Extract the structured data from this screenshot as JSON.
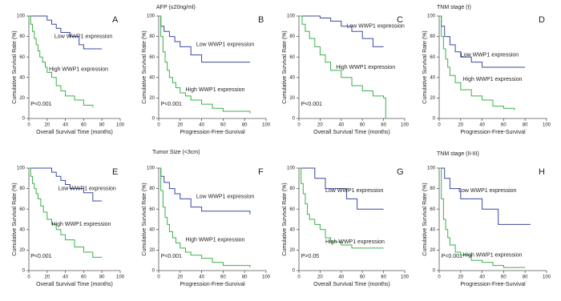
{
  "headings": [
    "AFP (≤20ng/ml)",
    "TNM stage (I)",
    "Tumor Size (<3cm)",
    "TNM stage (II-III)"
  ],
  "chart_data": [
    {
      "type": "line",
      "step": true,
      "title": "A",
      "xlabel": "Overall  Survival  Time (months)",
      "ylabel": "Cumulative Survival Rate (%)",
      "annotation": "P<0.001",
      "xlim": [
        0,
        100
      ],
      "xticks": [
        0,
        20,
        40,
        60,
        80,
        100
      ],
      "ylim": [
        0,
        100
      ],
      "yticks": [
        0,
        20,
        40,
        60,
        80,
        100
      ],
      "series": [
        {
          "name": "Low WWP1 expression",
          "color": "#3b4a9e",
          "x": [
            0,
            10,
            20,
            25,
            30,
            35,
            45,
            55,
            60,
            80
          ],
          "values": [
            100,
            100,
            96,
            92,
            88,
            84,
            80,
            72,
            68,
            68
          ]
        },
        {
          "name": "High WWP1 expression",
          "color": "#3cb04a",
          "x": [
            0,
            2,
            4,
            6,
            8,
            10,
            12,
            15,
            18,
            20,
            25,
            30,
            35,
            40,
            50,
            60,
            70
          ],
          "values": [
            100,
            92,
            85,
            78,
            72,
            66,
            60,
            55,
            50,
            45,
            40,
            32,
            27,
            22,
            18,
            13,
            11
          ]
        }
      ]
    },
    {
      "type": "line",
      "step": true,
      "title": "B",
      "xlabel": "Progression-Free-Survival",
      "ylabel": "Cumulative Survival Rate (%)",
      "annotation": "P<0.001",
      "xlim": [
        0,
        100
      ],
      "xticks": [
        0,
        20,
        40,
        60,
        80,
        100
      ],
      "ylim": [
        0,
        100
      ],
      "yticks": [
        0,
        20,
        40,
        60,
        80,
        100
      ],
      "series": [
        {
          "name": "Low WWP1 expression",
          "color": "#3b4a9e",
          "x": [
            0,
            2,
            5,
            10,
            15,
            20,
            30,
            40,
            85
          ],
          "values": [
            100,
            90,
            85,
            80,
            75,
            70,
            62,
            55,
            55
          ]
        },
        {
          "name": "High WWP1 expression",
          "color": "#3cb04a",
          "x": [
            0,
            2,
            4,
            6,
            8,
            10,
            13,
            16,
            20,
            25,
            30,
            40,
            50,
            60,
            85
          ],
          "values": [
            100,
            80,
            65,
            55,
            47,
            40,
            35,
            30,
            25,
            22,
            18,
            14,
            10,
            7,
            5
          ]
        }
      ]
    },
    {
      "type": "line",
      "step": true,
      "title": "C",
      "xlabel": "Overall  Survival  Time (months)",
      "ylabel": "Cumulative Survival Rate (%)",
      "annotation": "P<0.001",
      "xlim": [
        0,
        100
      ],
      "xticks": [
        0,
        20,
        40,
        60,
        80,
        100
      ],
      "ylim": [
        0,
        100
      ],
      "yticks": [
        0,
        20,
        40,
        60,
        80,
        100
      ],
      "series": [
        {
          "name": "Low WWP1 expression",
          "color": "#3b4a9e",
          "x": [
            0,
            20,
            30,
            40,
            50,
            60,
            70,
            80
          ],
          "values": [
            100,
            98,
            95,
            90,
            85,
            78,
            70,
            70
          ]
        },
        {
          "name": "High WWP1 expression",
          "color": "#3cb04a",
          "x": [
            0,
            3,
            6,
            10,
            15,
            20,
            25,
            30,
            40,
            50,
            60,
            70,
            80,
            82
          ],
          "values": [
            100,
            92,
            85,
            78,
            70,
            62,
            55,
            47,
            40,
            32,
            27,
            22,
            20,
            0
          ]
        }
      ]
    },
    {
      "type": "line",
      "step": true,
      "title": "D",
      "xlabel": "Progression-Free-Survival",
      "ylabel": "Cumulative Survival Rate (%)",
      "xlim": [
        0,
        100
      ],
      "xticks": [
        0,
        20,
        40,
        60,
        80,
        100
      ],
      "ylim": [
        0,
        100
      ],
      "yticks": [
        0,
        20,
        40,
        60,
        80,
        100
      ],
      "series": [
        {
          "name": "Low WWP1 expression",
          "color": "#3b4a9e",
          "x": [
            0,
            2,
            5,
            10,
            15,
            20,
            30,
            40,
            80
          ],
          "values": [
            100,
            90,
            80,
            72,
            65,
            60,
            55,
            50,
            50
          ]
        },
        {
          "name": "High WWP1 expression",
          "color": "#3cb04a",
          "x": [
            0,
            2,
            4,
            6,
            8,
            10,
            15,
            20,
            30,
            40,
            50,
            60,
            70
          ],
          "values": [
            100,
            80,
            68,
            58,
            50,
            42,
            35,
            28,
            22,
            18,
            12,
            10,
            8
          ]
        }
      ]
    },
    {
      "type": "line",
      "step": true,
      "title": "E",
      "xlabel": "Overall  Survival  Time (months)",
      "ylabel": "Cumulative Survival Rate (%)",
      "annotation": "P<0.001",
      "xlim": [
        0,
        100
      ],
      "xticks": [
        0,
        20,
        40,
        60,
        80,
        100
      ],
      "ylim": [
        0,
        100
      ],
      "yticks": [
        0,
        20,
        40,
        60,
        80,
        100
      ],
      "series": [
        {
          "name": "Low WWP1 expression",
          "color": "#3b4a9e",
          "x": [
            0,
            20,
            25,
            30,
            35,
            40,
            45,
            60,
            70,
            80
          ],
          "values": [
            100,
            100,
            96,
            92,
            88,
            84,
            80,
            76,
            68,
            68
          ]
        },
        {
          "name": "High WWP1 expression",
          "color": "#3cb04a",
          "x": [
            0,
            2,
            4,
            6,
            8,
            10,
            13,
            16,
            20,
            25,
            30,
            35,
            40,
            50,
            60,
            70,
            80
          ],
          "values": [
            100,
            92,
            85,
            80,
            75,
            70,
            63,
            57,
            50,
            45,
            40,
            35,
            30,
            23,
            18,
            13,
            13
          ]
        }
      ]
    },
    {
      "type": "line",
      "step": true,
      "title": "F",
      "xlabel": "Progression-Free-Survival",
      "ylabel": "Cumulative Survival Rate (%)",
      "annotation": "P<0.001",
      "xlim": [
        0,
        100
      ],
      "xticks": [
        0,
        20,
        40,
        60,
        80,
        100
      ],
      "ylim": [
        0,
        100
      ],
      "yticks": [
        0,
        20,
        40,
        60,
        80,
        100
      ],
      "series": [
        {
          "name": "Low WWP1 expression",
          "color": "#3b4a9e",
          "x": [
            0,
            2,
            5,
            10,
            15,
            20,
            30,
            40,
            85
          ],
          "values": [
            100,
            92,
            86,
            80,
            75,
            70,
            62,
            58,
            55
          ]
        },
        {
          "name": "High WWP1 expression",
          "color": "#3cb04a",
          "x": [
            0,
            2,
            4,
            6,
            8,
            10,
            13,
            16,
            20,
            25,
            30,
            40,
            50,
            60,
            85
          ],
          "values": [
            100,
            78,
            62,
            52,
            45,
            38,
            32,
            27,
            22,
            18,
            15,
            12,
            8,
            5,
            3
          ]
        }
      ]
    },
    {
      "type": "line",
      "step": true,
      "title": "G",
      "xlabel": "Overall  Survival  Time (months)",
      "ylabel": "Cumulative Survival Rate (%)",
      "annotation": "P>0.05",
      "xlim": [
        0,
        100
      ],
      "xticks": [
        0,
        20,
        40,
        60,
        80,
        100
      ],
      "ylim": [
        0,
        100
      ],
      "yticks": [
        0,
        20,
        40,
        60,
        80,
        100
      ],
      "series": [
        {
          "name": "Low WWP1 expression",
          "color": "#3b4a9e",
          "x": [
            0,
            15,
            25,
            35,
            45,
            55,
            60,
            80
          ],
          "values": [
            100,
            90,
            80,
            80,
            70,
            60,
            60,
            60
          ]
        },
        {
          "name": "High WWP1 expression",
          "color": "#3cb04a",
          "x": [
            0,
            2,
            4,
            6,
            8,
            10,
            15,
            20,
            25,
            30,
            40,
            50,
            60,
            80
          ],
          "values": [
            100,
            85,
            75,
            65,
            55,
            50,
            45,
            40,
            32,
            28,
            25,
            22,
            22,
            22
          ]
        }
      ]
    },
    {
      "type": "line",
      "step": true,
      "title": "H",
      "xlabel": "Progression-Free-Survival",
      "ylabel": "Cumulative Survival Rate (%)",
      "annotation": "P<0.001",
      "xlim": [
        0,
        100
      ],
      "xticks": [
        0,
        20,
        40,
        60,
        80,
        100
      ],
      "ylim": [
        0,
        100
      ],
      "yticks": [
        0,
        20,
        40,
        60,
        80,
        100
      ],
      "series": [
        {
          "name": "Low WWP1 expression",
          "color": "#3b4a9e",
          "x": [
            0,
            5,
            10,
            20,
            30,
            40,
            55,
            80,
            85
          ],
          "values": [
            100,
            90,
            80,
            70,
            70,
            60,
            45,
            45,
            45
          ]
        },
        {
          "name": "High WWP1 expression",
          "color": "#3cb04a",
          "x": [
            0,
            2,
            4,
            6,
            8,
            10,
            15,
            20,
            30,
            40,
            50,
            60,
            80
          ],
          "values": [
            100,
            70,
            50,
            40,
            32,
            25,
            18,
            15,
            10,
            8,
            5,
            3,
            3
          ]
        }
      ]
    }
  ]
}
